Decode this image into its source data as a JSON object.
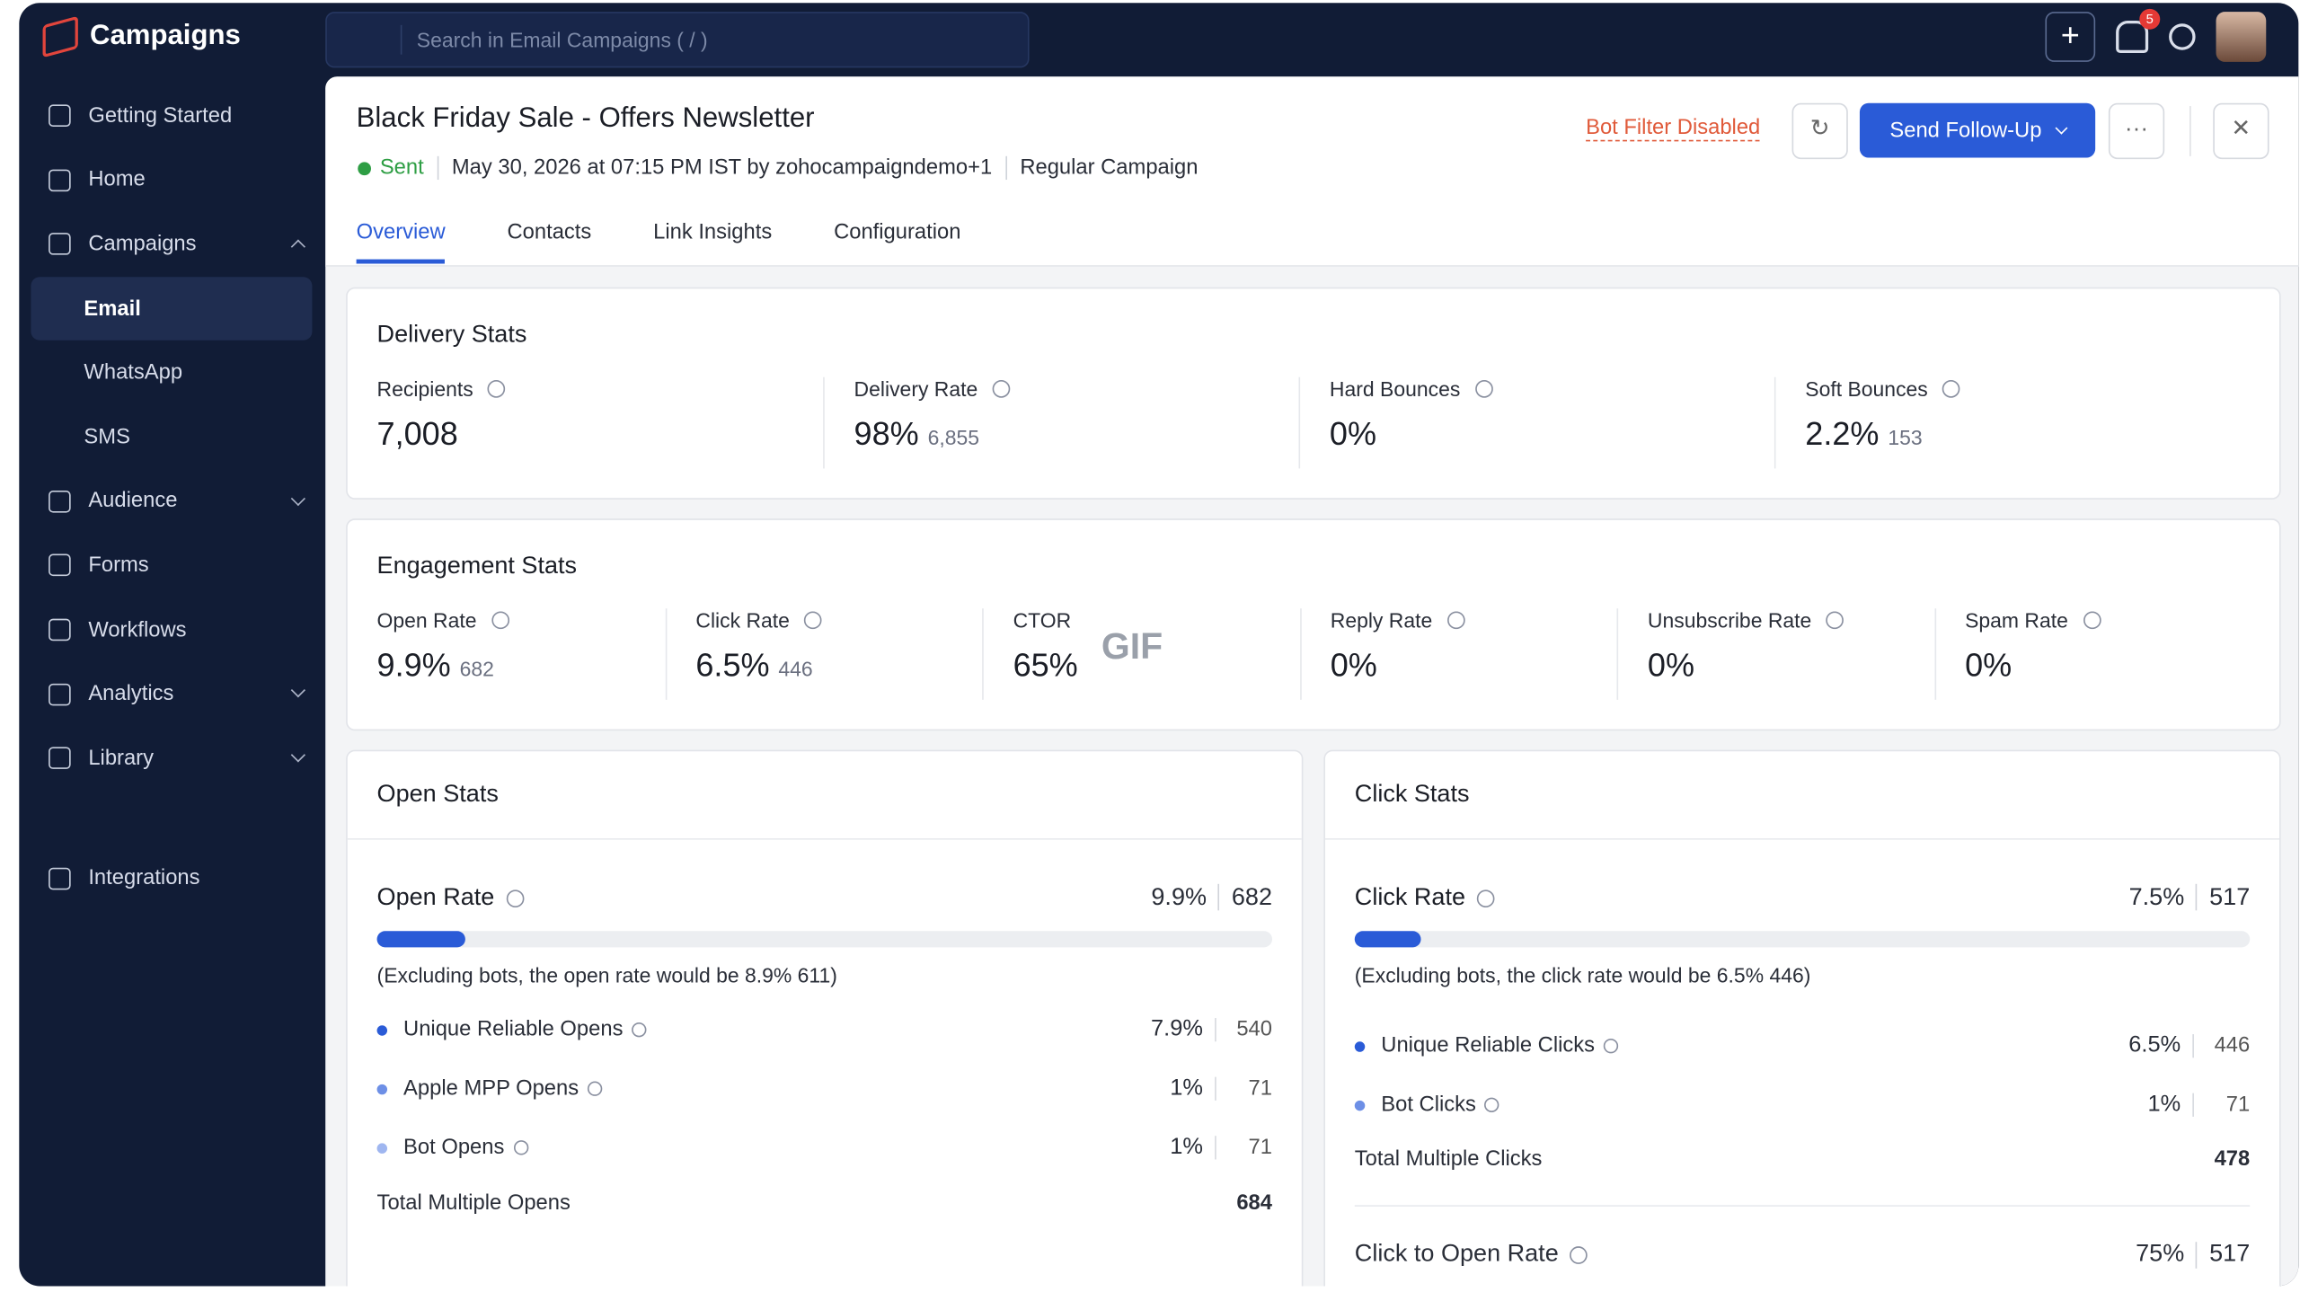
{
  "app": {
    "title": "Campaigns",
    "search_placeholder": "Search in Email Campaigns ( / )",
    "notification_count": "5"
  },
  "sidebar": {
    "items": [
      {
        "label": "Getting Started"
      },
      {
        "label": "Home"
      },
      {
        "label": "Campaigns"
      },
      {
        "label": "Email"
      },
      {
        "label": "WhatsApp"
      },
      {
        "label": "SMS"
      },
      {
        "label": "Audience"
      },
      {
        "label": "Forms"
      },
      {
        "label": "Workflows"
      },
      {
        "label": "Analytics"
      },
      {
        "label": "Library"
      },
      {
        "label": "Integrations"
      }
    ]
  },
  "header": {
    "title": "Black Friday Sale - Offers Newsletter",
    "status": "Sent",
    "sent_info": "May 30, 2026 at 07:15 PM IST by zohocampaigndemo+1",
    "campaign_type": "Regular Campaign",
    "bot_filter": "Bot Filter Disabled",
    "follow_up": "Send Follow-Up"
  },
  "tabs": [
    "Overview",
    "Contacts",
    "Link Insights",
    "Configuration"
  ],
  "delivery_stats": {
    "title": "Delivery Stats",
    "items": [
      {
        "label": "Recipients",
        "value": "7,008"
      },
      {
        "label": "Delivery Rate",
        "value": "98%",
        "count": "6,855"
      },
      {
        "label": "Hard Bounces",
        "value": "0%"
      },
      {
        "label": "Soft Bounces",
        "value": "2.2%",
        "count": "153"
      }
    ]
  },
  "engagement_stats": {
    "title": "Engagement Stats",
    "items": [
      {
        "label": "Open Rate",
        "value": "9.9%",
        "count": "682"
      },
      {
        "label": "Click Rate",
        "value": "6.5%",
        "count": "446"
      },
      {
        "label": "CTOR",
        "value": "65%"
      },
      {
        "label": "Reply Rate",
        "value": "0%"
      },
      {
        "label": "Unsubscribe Rate",
        "value": "0%"
      },
      {
        "label": "Spam Rate",
        "value": "0%"
      }
    ]
  },
  "gif_overlay": "GIF",
  "open_stats": {
    "title": "Open Stats",
    "rate_label": "Open Rate",
    "rate": "9.9%",
    "count": "682",
    "note": "(Excluding bots, the open rate would be 8.9% 611)",
    "rows": [
      {
        "label": "Unique Reliable Opens",
        "rate": "7.9%",
        "count": "540"
      },
      {
        "label": "Apple MPP Opens",
        "rate": "1%",
        "count": "71"
      },
      {
        "label": "Bot Opens",
        "rate": "1%",
        "count": "71"
      }
    ],
    "total_label": "Total Multiple Opens",
    "total": "684"
  },
  "click_stats": {
    "title": "Click Stats",
    "rate_label": "Click Rate",
    "rate": "7.5%",
    "count": "517",
    "note": "(Excluding bots, the click rate would be 6.5% 446)",
    "rows": [
      {
        "label": "Unique Reliable Clicks",
        "rate": "6.5%",
        "count": "446"
      },
      {
        "label": "Bot Clicks",
        "rate": "1%",
        "count": "71"
      }
    ],
    "total_label": "Total Multiple Clicks",
    "total": "478",
    "ctor_label": "Click to Open Rate",
    "ctor_rate": "75%",
    "ctor_count": "517"
  }
}
